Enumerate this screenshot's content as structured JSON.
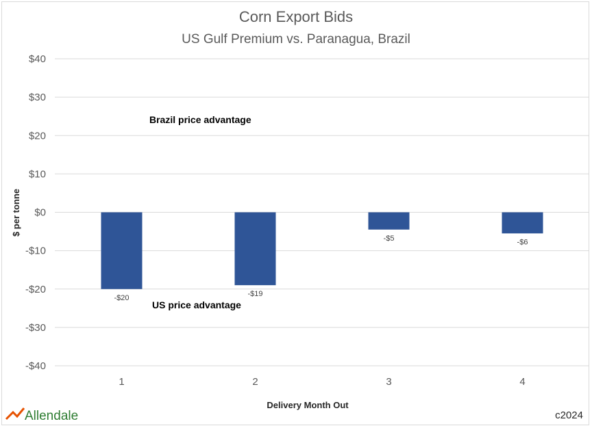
{
  "chart_data": {
    "type": "bar",
    "title": "Corn Export Bids",
    "subtitle": "US Gulf Premium vs. Paranagua, Brazil",
    "xlabel": "Delivery Month Out",
    "ylabel": "$ per tonne",
    "categories": [
      "1",
      "2",
      "3",
      "4"
    ],
    "values": [
      -20,
      -19,
      -4.5,
      -5.5
    ],
    "data_labels": [
      "-$20",
      "-$19",
      "-$5",
      "-$6"
    ],
    "ylim": [
      -40,
      40
    ],
    "yticks": [
      40,
      30,
      20,
      10,
      0,
      -10,
      -20,
      -30,
      -40
    ],
    "ytick_labels": [
      "$40",
      "$30",
      "$20",
      "$10",
      "$0",
      "-$10",
      "-$20",
      "-$30",
      "-$40"
    ],
    "annotations": [
      "Brazil price advantage",
      "US price advantage"
    ],
    "grid": true,
    "legend": false,
    "colors": {
      "bar": "#2f5597",
      "grid": "#d9d9d9",
      "text": "#595959"
    }
  },
  "footer": {
    "logo": "Allendale",
    "copyright": "c2024"
  }
}
